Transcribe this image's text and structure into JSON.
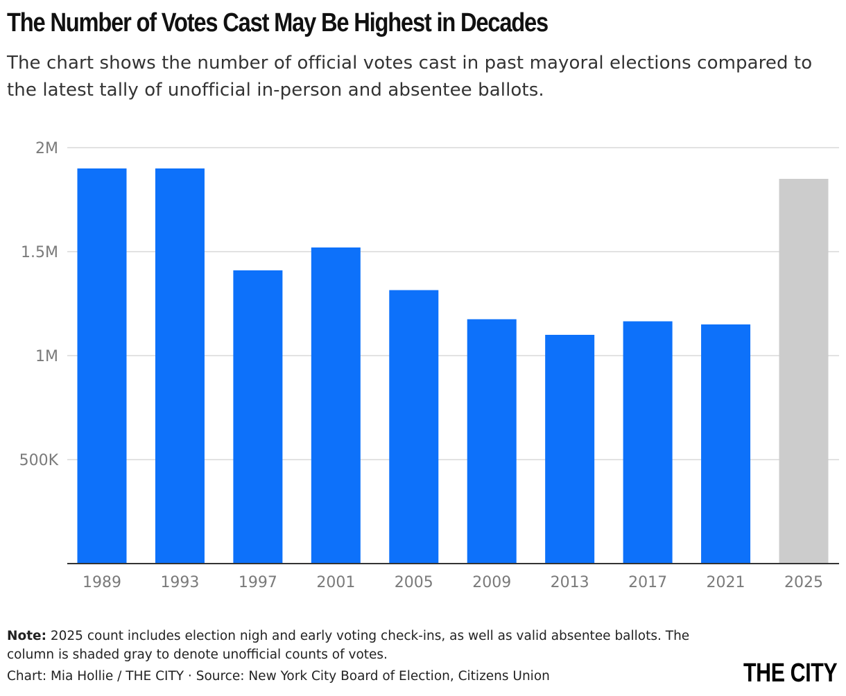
{
  "header": {
    "title": "The Number of Votes Cast May Be Highest in Decades",
    "subtitle": "The chart shows the number of official votes cast in past mayoral elections compared to the latest tally of unofficial in-person and absentee ballots."
  },
  "chart_data": {
    "type": "bar",
    "title": "The Number of Votes Cast May Be Highest in Decades",
    "xlabel": "",
    "ylabel": "",
    "categories": [
      "1989",
      "1993",
      "1997",
      "2001",
      "2005",
      "2009",
      "2013",
      "2017",
      "2021",
      "2025"
    ],
    "values": [
      1900000,
      1900000,
      1410000,
      1520000,
      1315000,
      1175000,
      1100000,
      1165000,
      1150000,
      1850000
    ],
    "unofficial": [
      false,
      false,
      false,
      false,
      false,
      false,
      false,
      false,
      false,
      true
    ],
    "ylim": [
      0,
      2000000
    ],
    "yticks": [
      500000,
      1000000,
      1500000,
      2000000
    ],
    "ytick_labels": [
      "500K",
      "1M",
      "1.5M",
      "2M"
    ],
    "grid": true,
    "colors": {
      "official": "#0d71fa",
      "unofficial": "#cccccc",
      "gridline": "#d9d9d9",
      "axis": "#333333"
    }
  },
  "footer": {
    "note_label": "Note:",
    "note_text": " 2025 count includes election nigh and early voting check-ins, as well as valid absentee ballots. The column is shaded gray to denote unofficial counts of votes.",
    "credit": "Chart: Mia Hollie / THE CITY · Source: New York City Board of Election, Citizens Union",
    "logo": "THE CITY"
  }
}
